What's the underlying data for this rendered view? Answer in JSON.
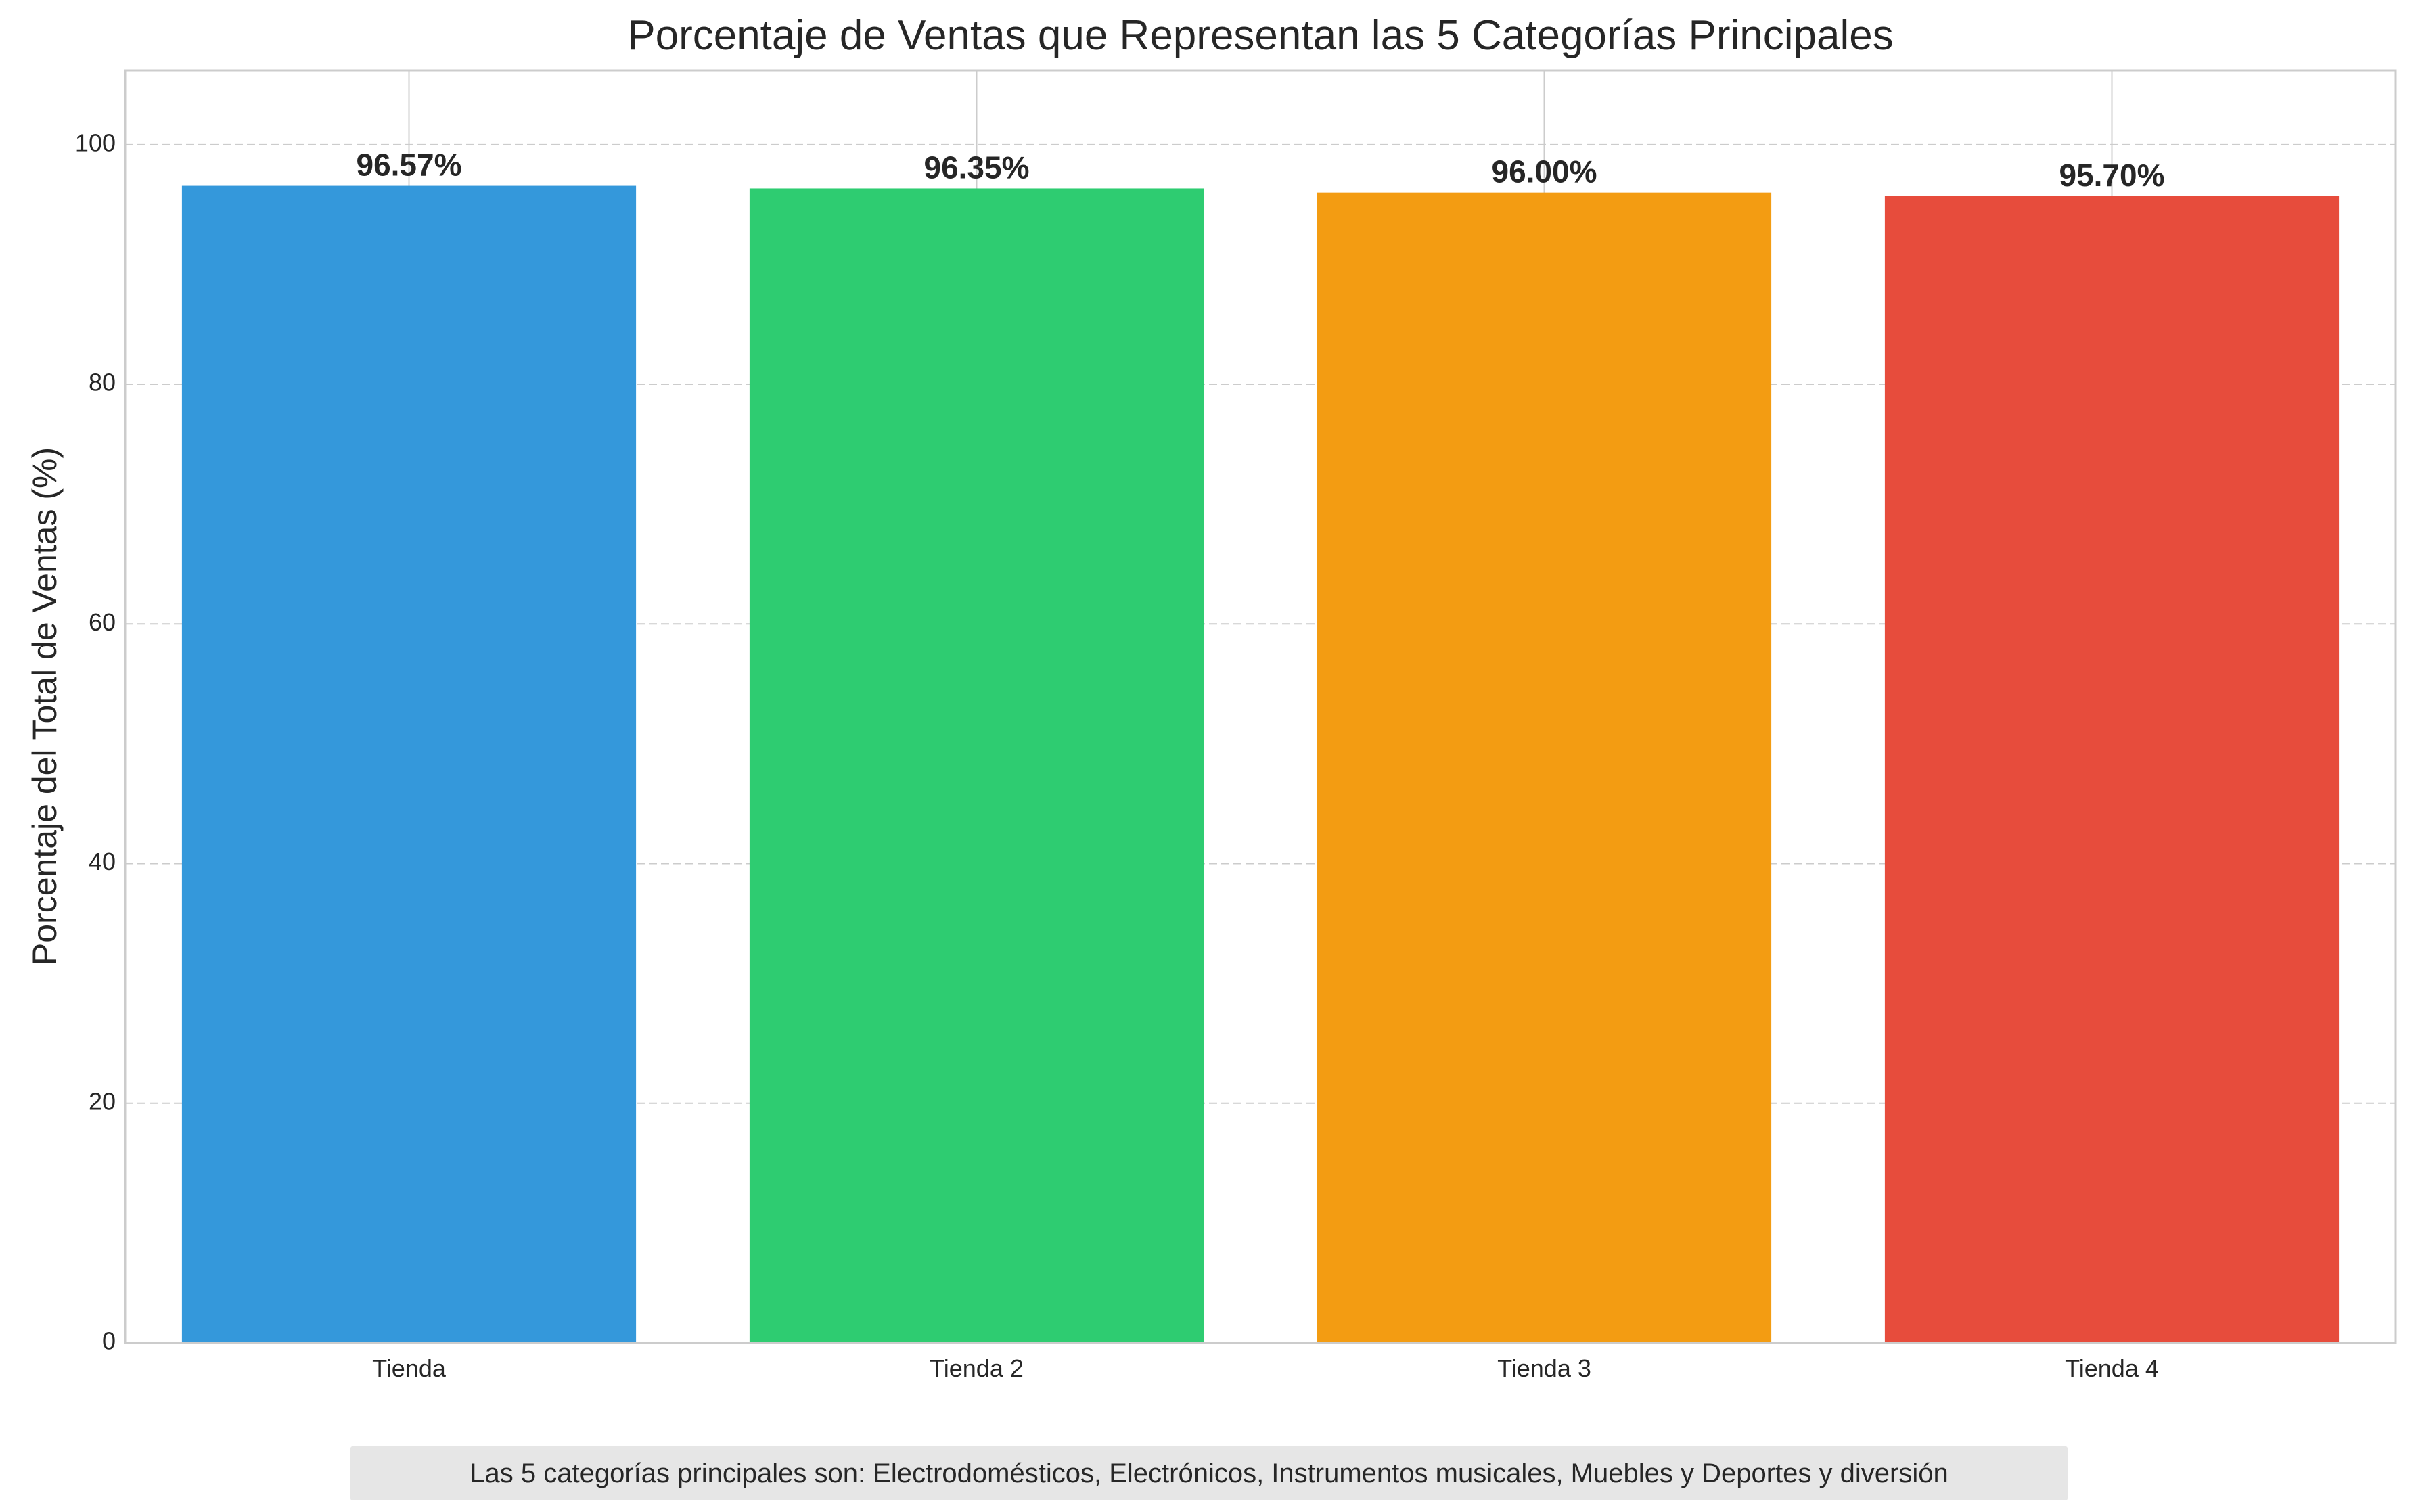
{
  "chart_data": {
    "type": "bar",
    "title": "Porcentaje de Ventas que Representan las 5 Categorías Principales",
    "xlabel": "",
    "ylabel": "Porcentaje del Total de Ventas (%)",
    "categories": [
      "Tienda",
      "Tienda 2",
      "Tienda 3",
      "Tienda 4"
    ],
    "values": [
      96.57,
      96.35,
      96.0,
      95.7
    ],
    "value_labels": [
      "96.57%",
      "96.35%",
      "96.00%",
      "95.70%"
    ],
    "colors": [
      "#3498db",
      "#2ecc71",
      "#f39c12",
      "#e74c3c"
    ],
    "ylim": [
      0,
      106.2
    ],
    "yticks": [
      0,
      20,
      40,
      60,
      80,
      100
    ],
    "grid": true,
    "legend": "none",
    "footnote": "Las 5 categorías principales son: Electrodomésticos, Electrónicos, Instrumentos musicales, Muebles y Deportes y diversión"
  }
}
